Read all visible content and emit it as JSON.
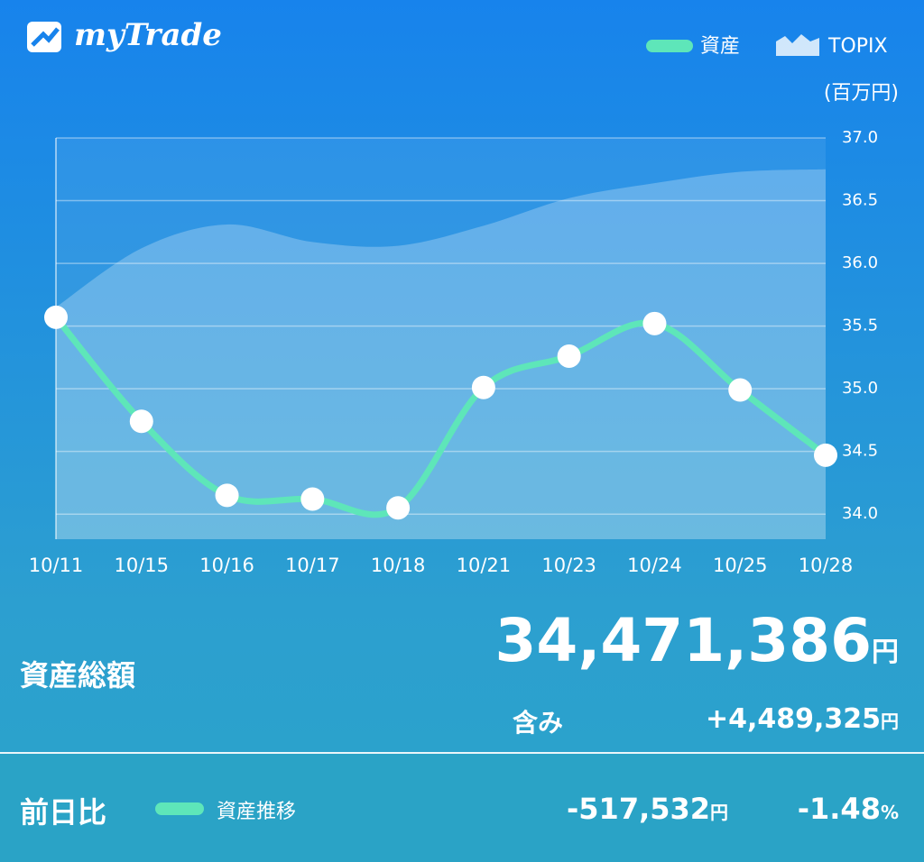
{
  "app": {
    "name": "myTrade"
  },
  "chart_data": {
    "type": "line",
    "unit_label": "(百万円)",
    "categories": [
      "10/11",
      "10/15",
      "10/16",
      "10/17",
      "10/18",
      "10/21",
      "10/23",
      "10/24",
      "10/25",
      "10/28"
    ],
    "series": [
      {
        "name": "資産",
        "color": "#5ee6b9",
        "values": [
          35.57,
          34.74,
          34.15,
          34.12,
          34.05,
          35.01,
          35.26,
          35.52,
          34.99,
          34.47
        ]
      },
      {
        "name": "TOPIX",
        "color": "#ffffff",
        "values": [
          35.65,
          36.12,
          36.31,
          36.17,
          36.14,
          36.3,
          36.52,
          36.64,
          36.73,
          36.75
        ]
      }
    ],
    "ylim": [
      33.8,
      37.0
    ],
    "yticks": [
      {
        "value": 34,
        "label": "34.0"
      },
      34.5,
      {
        "value": 35,
        "label": "35.0"
      },
      35.5,
      {
        "value": 36,
        "label": "36.0"
      },
      36.5,
      {
        "value": 37,
        "label": "37.0"
      }
    ],
    "grid": true
  },
  "summary": {
    "total_label": "資産総額",
    "total_value": "34,471,386",
    "total_unit": "円",
    "gain_label": "含み",
    "gain_value": "+4,489,325",
    "gain_unit": "円"
  },
  "daily": {
    "label": "前日比",
    "legend": "資産推移",
    "change_value": "-517,532",
    "change_unit": "円",
    "change_pct": "-1.48",
    "pct_unit": "%"
  }
}
